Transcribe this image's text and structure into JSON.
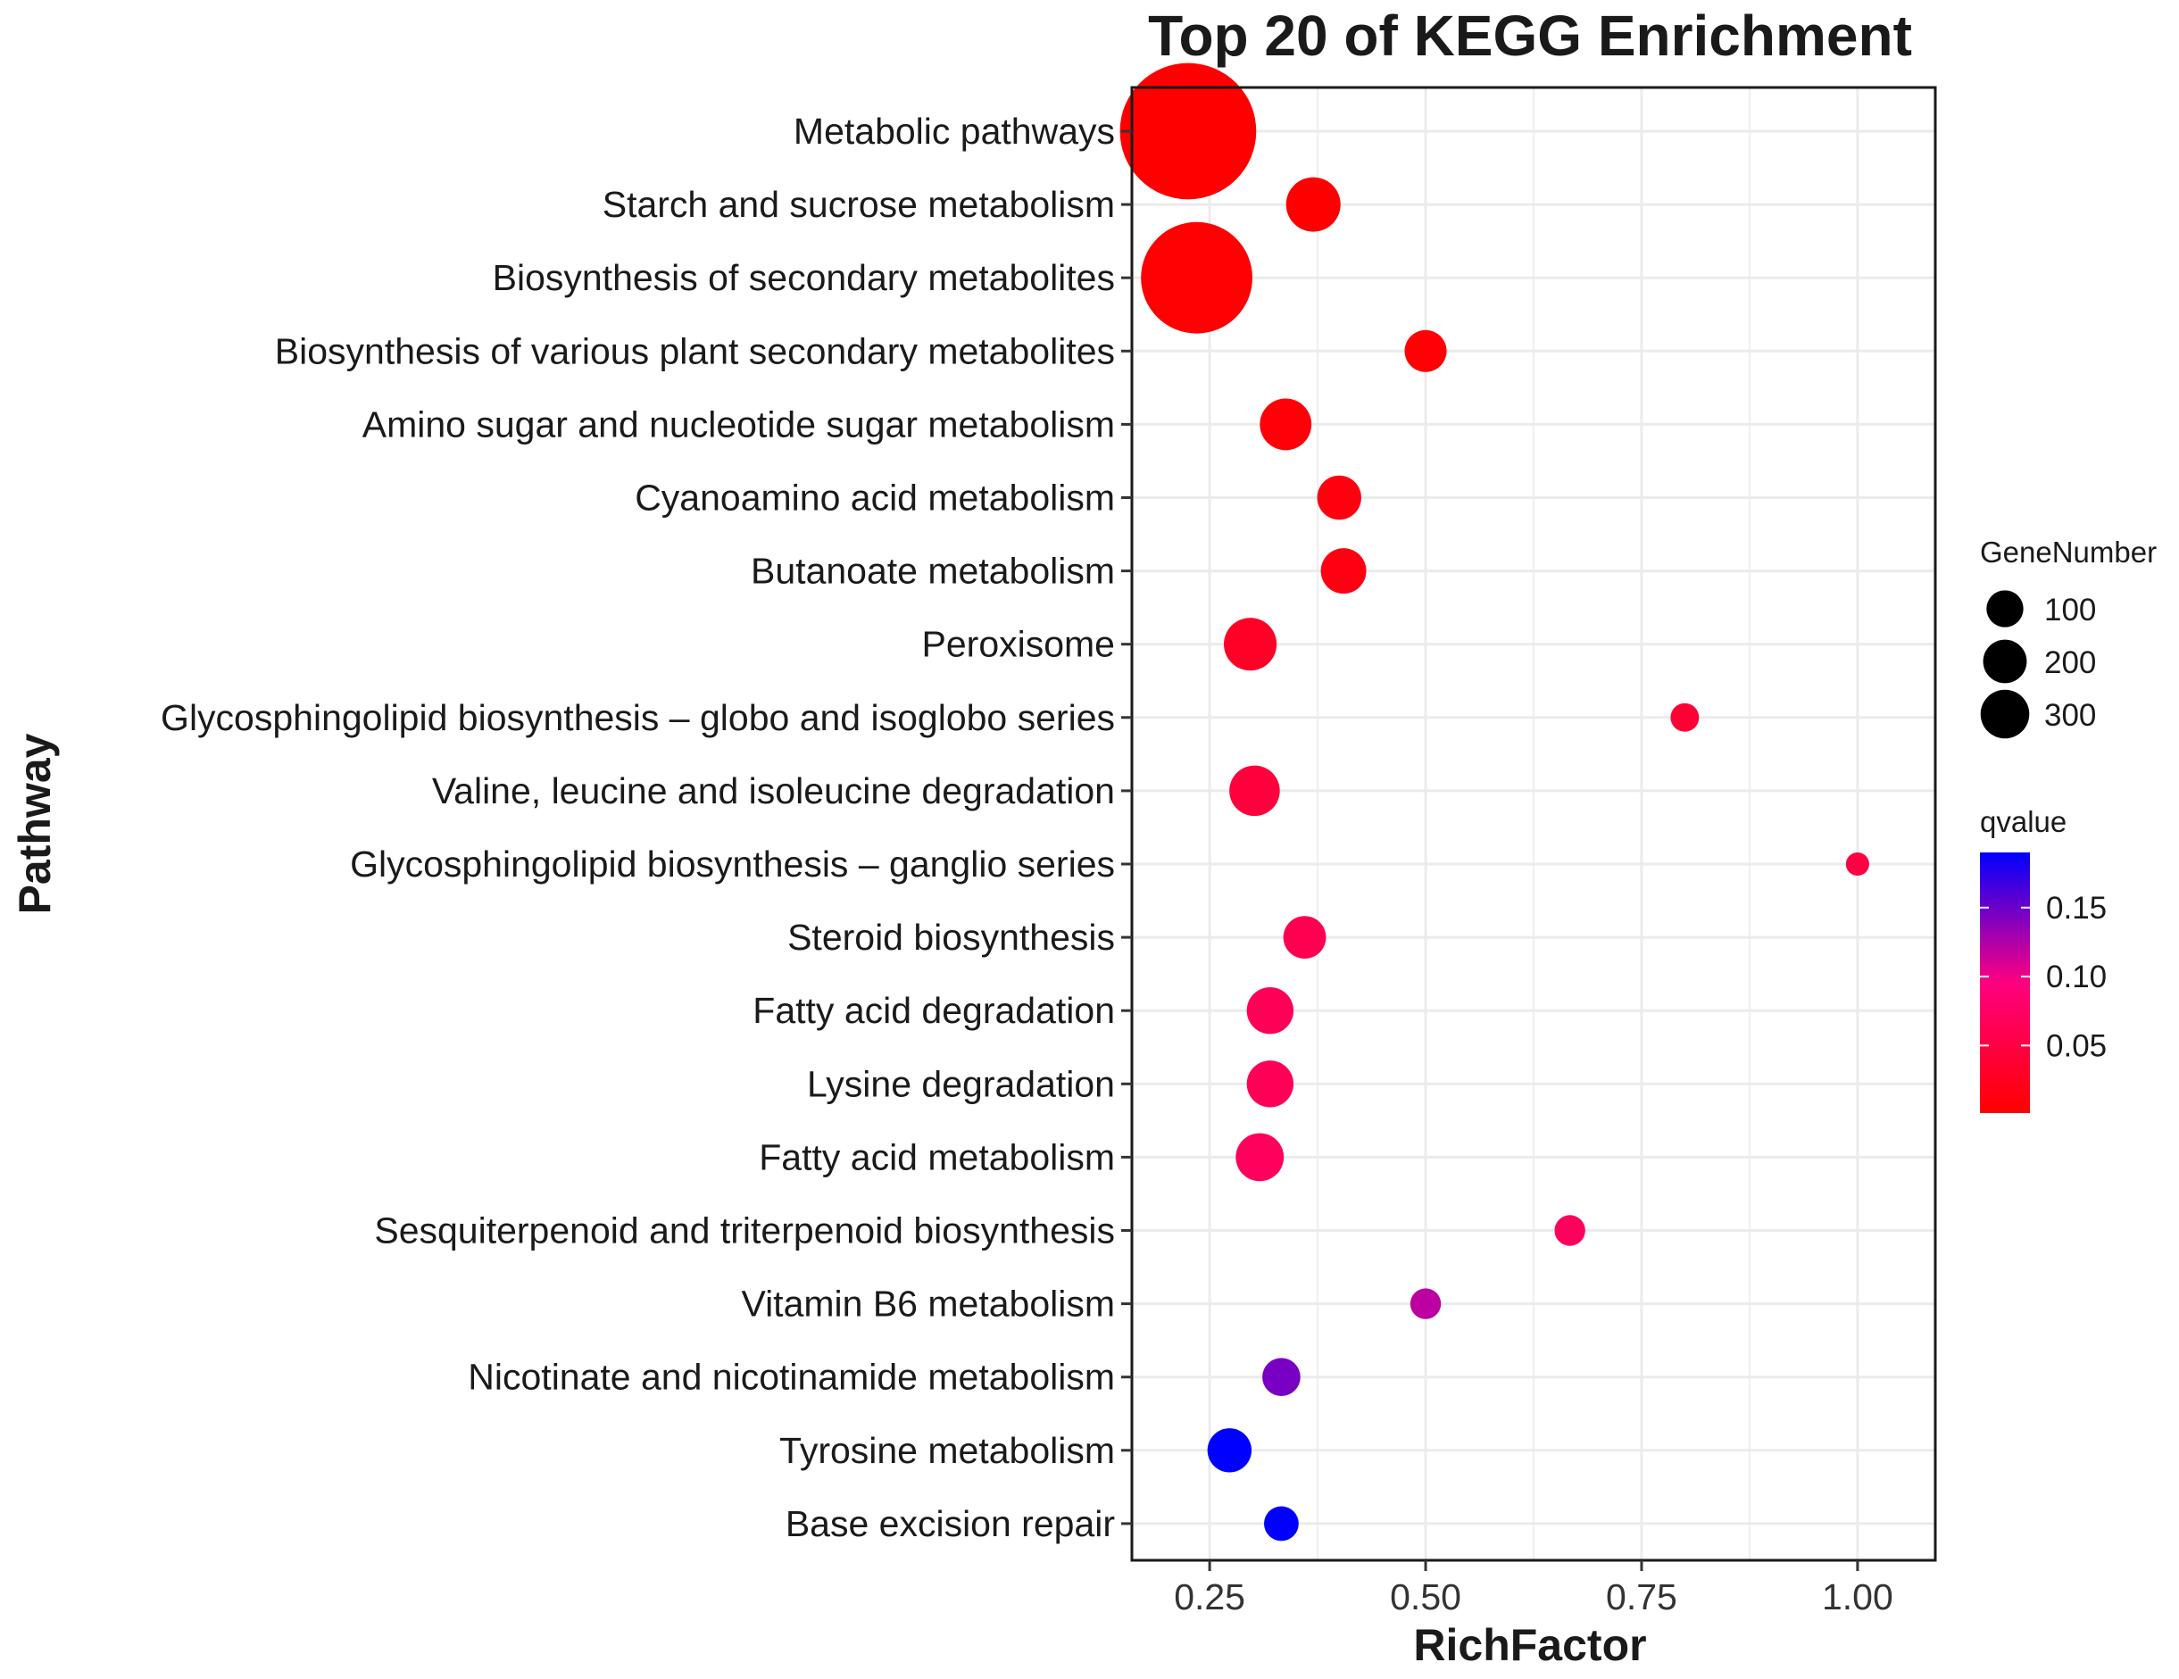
{
  "chart_data": {
    "type": "scatter",
    "title": "Top 20 of KEGG Enrichment",
    "xlabel": "RichFactor",
    "ylabel": "Pathway",
    "xlim": [
      0.16,
      1.09
    ],
    "xticks": [
      0.25,
      0.5,
      0.75,
      1.0
    ],
    "xtick_labels": [
      "0.25",
      "0.50",
      "0.75",
      "1.00"
    ],
    "grid": true,
    "categories": [
      "Metabolic pathways",
      "Starch and sucrose metabolism",
      "Biosynthesis of secondary metabolites",
      "Biosynthesis of various plant secondary metabolites",
      "Amino sugar and nucleotide sugar metabolism",
      "Cyanoamino acid metabolism",
      "Butanoate metabolism",
      "Peroxisome",
      "Glycosphingolipid biosynthesis – globo and isoglobo series",
      "Valine, leucine and isoleucine degradation",
      "Glycosphingolipid biosynthesis – ganglio series",
      "Steroid biosynthesis",
      "Fatty acid degradation",
      "Lysine degradation",
      "Fatty acid metabolism",
      "Sesquiterpenoid and triterpenoid biosynthesis",
      "Vitamin B6 metabolism",
      "Nicotinate and nicotinamide metabolism",
      "Tyrosine metabolism",
      "Base excision repair"
    ],
    "points": [
      {
        "pathway": "Metabolic pathways",
        "rich_factor": 0.225,
        "gene_number": 320,
        "qvalue": 0.001
      },
      {
        "pathway": "Starch and sucrose metabolism",
        "rich_factor": 0.37,
        "gene_number": 45,
        "qvalue": 0.002
      },
      {
        "pathway": "Biosynthesis of secondary metabolites",
        "rich_factor": 0.235,
        "gene_number": 210,
        "qvalue": 0.003
      },
      {
        "pathway": "Biosynthesis of various plant secondary metabolites",
        "rich_factor": 0.5,
        "gene_number": 25,
        "qvalue": 0.005
      },
      {
        "pathway": "Amino sugar and nucleotide sugar metabolism",
        "rich_factor": 0.338,
        "gene_number": 40,
        "qvalue": 0.008
      },
      {
        "pathway": "Cyanoamino acid metabolism",
        "rich_factor": 0.4,
        "gene_number": 28,
        "qvalue": 0.012
      },
      {
        "pathway": "Butanoate metabolism",
        "rich_factor": 0.405,
        "gene_number": 30,
        "qvalue": 0.015
      },
      {
        "pathway": "Peroxisome",
        "rich_factor": 0.297,
        "gene_number": 42,
        "qvalue": 0.03
      },
      {
        "pathway": "Glycosphingolipid biosynthesis – globo and isoglobo series",
        "rich_factor": 0.8,
        "gene_number": 10,
        "qvalue": 0.04
      },
      {
        "pathway": "Valine, leucine and isoleucine degradation",
        "rich_factor": 0.302,
        "gene_number": 38,
        "qvalue": 0.045
      },
      {
        "pathway": "Glycosphingolipid biosynthesis – ganglio series",
        "rich_factor": 1.0,
        "gene_number": 6,
        "qvalue": 0.05
      },
      {
        "pathway": "Steroid biosynthesis",
        "rich_factor": 0.36,
        "gene_number": 26,
        "qvalue": 0.06
      },
      {
        "pathway": "Fatty acid degradation",
        "rich_factor": 0.32,
        "gene_number": 32,
        "qvalue": 0.065
      },
      {
        "pathway": "Lysine degradation",
        "rich_factor": 0.32,
        "gene_number": 32,
        "qvalue": 0.065
      },
      {
        "pathway": "Fatty acid metabolism",
        "rich_factor": 0.308,
        "gene_number": 34,
        "qvalue": 0.07
      },
      {
        "pathway": "Sesquiterpenoid and triterpenoid biosynthesis",
        "rich_factor": 0.667,
        "gene_number": 12,
        "qvalue": 0.07
      },
      {
        "pathway": "Vitamin B6 metabolism",
        "rich_factor": 0.5,
        "gene_number": 12,
        "qvalue": 0.12
      },
      {
        "pathway": "Nicotinate and nicotinamide metabolism",
        "rich_factor": 0.333,
        "gene_number": 20,
        "qvalue": 0.145
      },
      {
        "pathway": "Tyrosine metabolism",
        "rich_factor": 0.273,
        "gene_number": 28,
        "qvalue": 0.19
      },
      {
        "pathway": "Base excision repair",
        "rich_factor": 0.333,
        "gene_number": 16,
        "qvalue": 0.19
      }
    ],
    "size_legend": {
      "title": "GeneNumber",
      "values": [
        100,
        200,
        300
      ],
      "labels": [
        "100",
        "200",
        "300"
      ]
    },
    "color_legend": {
      "title": "qvalue",
      "range": [
        0.001,
        0.19
      ],
      "ticks": [
        0.05,
        0.1,
        0.15
      ],
      "tick_labels": [
        "0.05",
        "0.10",
        "0.15"
      ],
      "low_color": "#ff0000",
      "mid_color": "#ff0080",
      "high_color": "#0000ff"
    },
    "legend_position": "right"
  }
}
